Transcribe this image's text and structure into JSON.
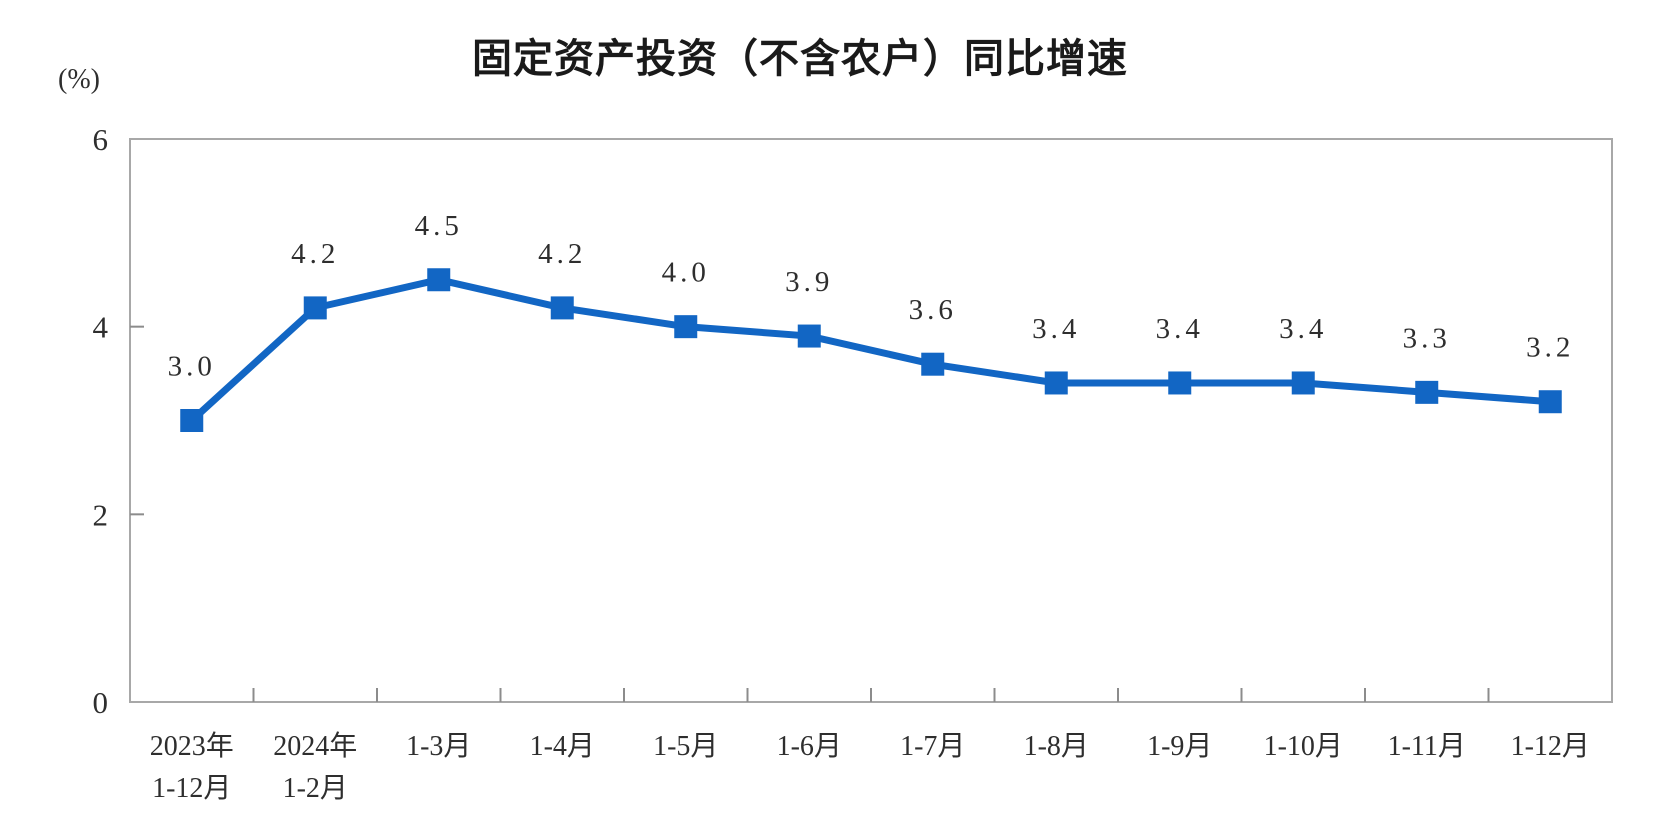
{
  "chart_data": {
    "type": "line",
    "title": "固定资产投资（不含农户）同比增速",
    "unit_label": "(%)",
    "categories": [
      [
        "2023年",
        "1-12月"
      ],
      [
        "2024年",
        "1-2月"
      ],
      [
        "1-3月"
      ],
      [
        "1-4月"
      ],
      [
        "1-5月"
      ],
      [
        "1-6月"
      ],
      [
        "1-7月"
      ],
      [
        "1-8月"
      ],
      [
        "1-9月"
      ],
      [
        "1-10月"
      ],
      [
        "1-11月"
      ],
      [
        "1-12月"
      ]
    ],
    "series": [
      {
        "name": "固定资产投资（不含农户）同比增速",
        "values": [
          3.0,
          4.2,
          4.5,
          4.2,
          4.0,
          3.9,
          3.6,
          3.4,
          3.4,
          3.4,
          3.3,
          3.2
        ],
        "data_labels": [
          "3.0",
          "4.2",
          "4.5",
          "4.2",
          "4.0",
          "3.9",
          "3.6",
          "3.4",
          "3.4",
          "3.4",
          "3.3",
          "3.2"
        ]
      }
    ],
    "xlabel": "",
    "ylabel": "(%)",
    "ylim": [
      0,
      6
    ],
    "yticks": [
      0,
      2,
      4,
      6
    ],
    "grid": false,
    "legend_position": "none",
    "colors": {
      "series_line": "#1266c4",
      "marker_fill": "#1266c4",
      "plot_border": "#a8a8a8",
      "tick_mark": "#8c8c8c",
      "label_text": "#2e2e2e",
      "title_text": "#1a1a1a",
      "background": "#ffffff"
    }
  }
}
